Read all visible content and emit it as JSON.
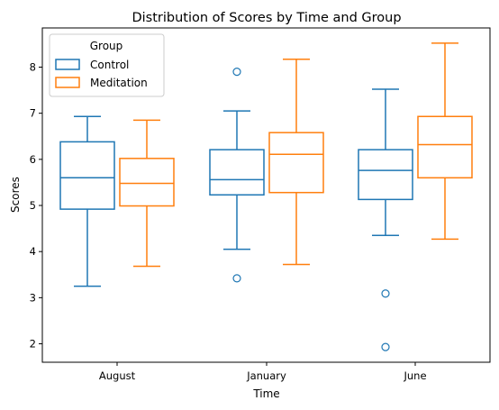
{
  "chart_data": {
    "type": "box",
    "title": "Distribution of Scores by Time and Group",
    "xlabel": "Time",
    "ylabel": "Scores",
    "categories": [
      "August",
      "January",
      "June"
    ],
    "ylim": [
      1.6,
      8.85
    ],
    "yticks": [
      2,
      3,
      4,
      5,
      6,
      7,
      8
    ],
    "ytick_labels": [
      "2",
      "3",
      "4",
      "5",
      "6",
      "7",
      "8"
    ],
    "grid": false,
    "legend": {
      "title": "Group",
      "position": "top-left",
      "entries": [
        "Control",
        "Meditation"
      ]
    },
    "series": [
      {
        "name": "Control",
        "color": "#1f77b4",
        "boxes": [
          {
            "category": "August",
            "whisker_low": 3.25,
            "q1": 4.92,
            "median": 5.6,
            "q3": 6.38,
            "whisker_high": 6.93,
            "outliers": []
          },
          {
            "category": "January",
            "whisker_low": 4.05,
            "q1": 5.23,
            "median": 5.56,
            "q3": 6.21,
            "whisker_high": 7.05,
            "outliers": [
              7.9,
              3.42
            ]
          },
          {
            "category": "June",
            "whisker_low": 4.35,
            "q1": 5.13,
            "median": 5.76,
            "q3": 6.21,
            "whisker_high": 7.52,
            "outliers": [
              3.09,
              1.93
            ]
          }
        ]
      },
      {
        "name": "Meditation",
        "color": "#ff7f0e",
        "boxes": [
          {
            "category": "August",
            "whisker_low": 3.68,
            "q1": 4.99,
            "median": 5.48,
            "q3": 6.02,
            "whisker_high": 6.85,
            "outliers": []
          },
          {
            "category": "January",
            "whisker_low": 3.72,
            "q1": 5.28,
            "median": 6.11,
            "q3": 6.58,
            "whisker_high": 8.17,
            "outliers": []
          },
          {
            "category": "June",
            "whisker_low": 4.27,
            "q1": 5.6,
            "median": 6.32,
            "q3": 6.93,
            "whisker_high": 8.52,
            "outliers": []
          }
        ]
      }
    ]
  }
}
